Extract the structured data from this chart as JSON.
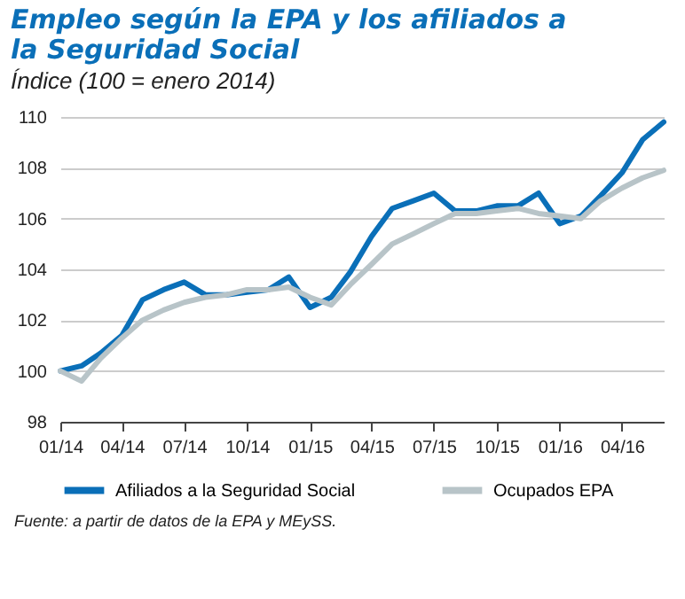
{
  "chart_data": {
    "type": "line",
    "title": "Empleo según la EPA y los afiliados a la Seguridad Social",
    "subtitle": "Índice (100 = enero 2014)",
    "annotations": [
      "Fuente: a partir de datos de la EPA y MEySS."
    ],
    "x": [
      "2014-01",
      "2014-02",
      "2014-03",
      "2014-04",
      "2014-05",
      "2014-06",
      "2014-07",
      "2014-08",
      "2014-09",
      "2014-10",
      "2014-11",
      "2014-12",
      "2015-01",
      "2015-02",
      "2015-03",
      "2015-04",
      "2015-05",
      "2015-06",
      "2015-07",
      "2015-08",
      "2015-09",
      "2015-10",
      "2015-11",
      "2015-12",
      "2016-01",
      "2016-02",
      "2016-03",
      "2016-04",
      "2016-05",
      "2016-06"
    ],
    "series": [
      {
        "name": "Afiliados a la Seguridad Social",
        "color": "#0a6fb8",
        "values": [
          100,
          100.2,
          100.7,
          101.4,
          102.8,
          103.2,
          103.5,
          103.0,
          103.0,
          103.1,
          103.2,
          103.7,
          102.5,
          102.9,
          103.9,
          105.3,
          106.4,
          106.7,
          107.0,
          106.3,
          106.3,
          106.5,
          106.5,
          107.0,
          105.8,
          106.1,
          106.9,
          107.8,
          109.1,
          109.8
        ]
      },
      {
        "name": "Ocupados EPA",
        "color": "#b8c4c8",
        "values": [
          100,
          99.6,
          100.5,
          101.3,
          102.0,
          102.4,
          102.7,
          102.9,
          103.0,
          103.2,
          103.2,
          103.3,
          102.9,
          102.6,
          103.4,
          104.2,
          105.0,
          105.4,
          105.8,
          106.2,
          106.2,
          106.3,
          106.4,
          106.2,
          106.1,
          106.0,
          106.7,
          107.2,
          107.6,
          107.9
        ]
      }
    ],
    "xlim": [
      "2014-01",
      "2016-06"
    ],
    "xticks": [
      {
        "value": "2014-01",
        "label": "01/14"
      },
      {
        "value": "2014-04",
        "label": "04/14"
      },
      {
        "value": "2014-07",
        "label": "07/14"
      },
      {
        "value": "2014-10",
        "label": "10/14"
      },
      {
        "value": "2015-01",
        "label": "01/15"
      },
      {
        "value": "2015-04",
        "label": "04/15"
      },
      {
        "value": "2015-07",
        "label": "07/15"
      },
      {
        "value": "2015-10",
        "label": "10/15"
      },
      {
        "value": "2016-01",
        "label": "01/16"
      },
      {
        "value": "2016-04",
        "label": "04/16"
      }
    ],
    "ylim": [
      98,
      110
    ],
    "yticks": [
      98,
      100,
      102,
      104,
      106,
      108,
      110
    ],
    "grid": "y",
    "legend": "bottom",
    "marker": "none",
    "line_style": "solid"
  }
}
